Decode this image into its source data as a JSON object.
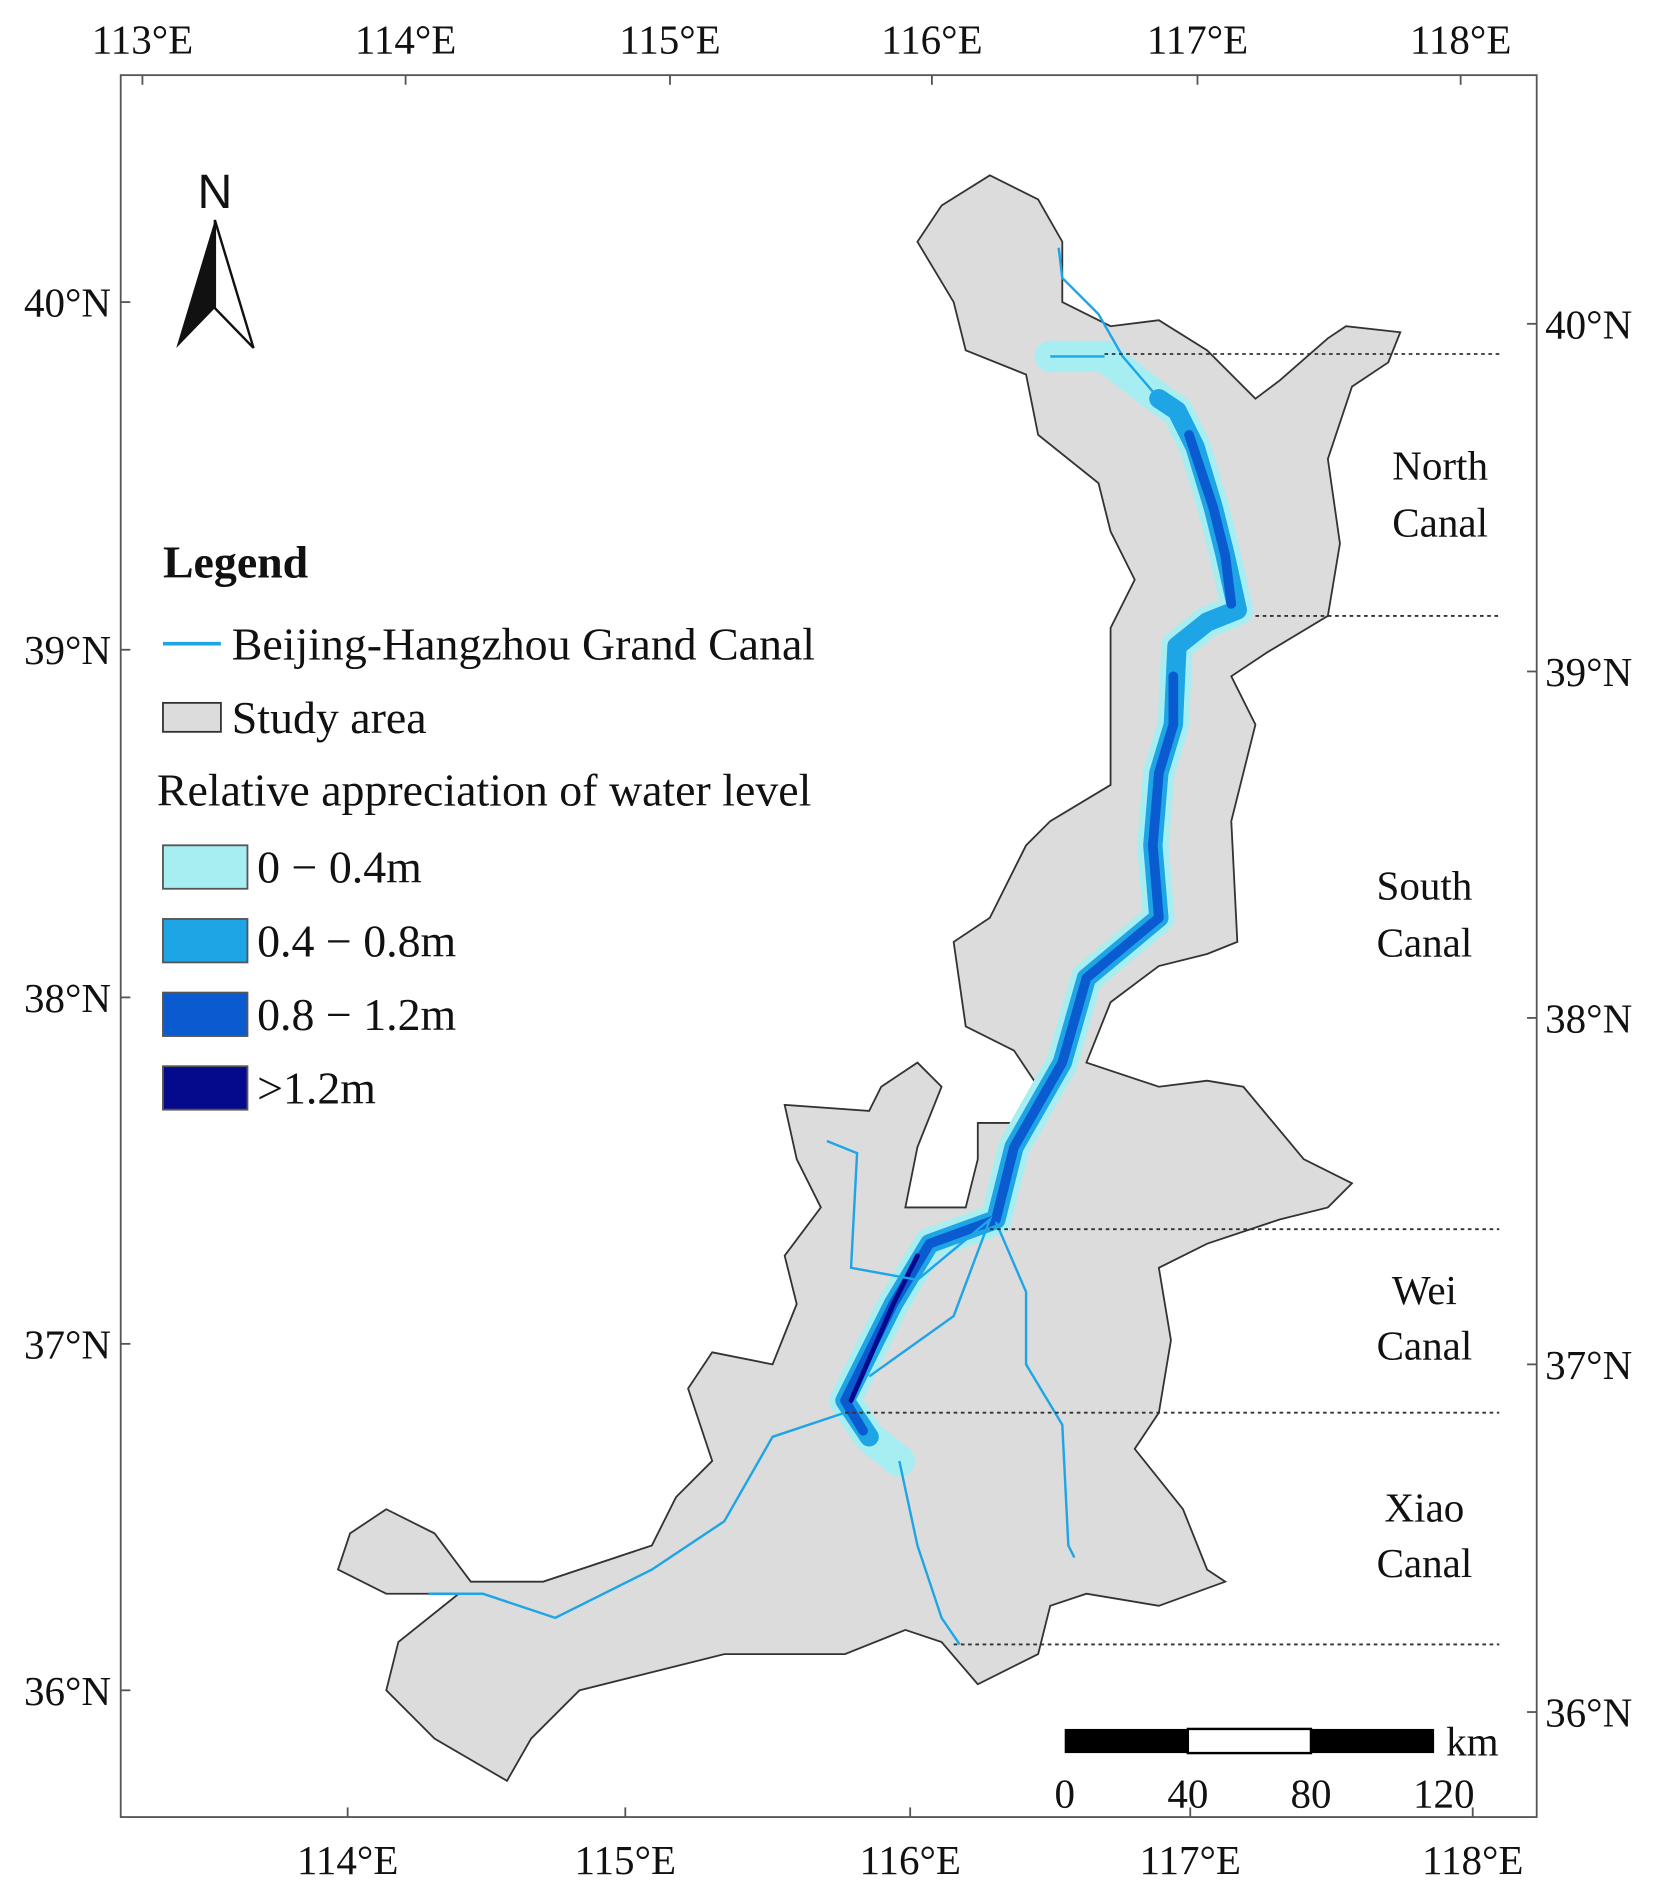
{
  "top_axis": {
    "labels": [
      "113°E",
      "114°E",
      "115°E",
      "116°E",
      "117°E",
      "118°E"
    ]
  },
  "bottom_axis": {
    "labels": [
      "114°E",
      "115°E",
      "116°E",
      "117°E",
      "118°E"
    ]
  },
  "left_axis": {
    "labels": [
      "40°N",
      "39°N",
      "38°N",
      "37°N",
      "36°N"
    ]
  },
  "right_axis": {
    "labels": [
      "40°N",
      "39°N",
      "38°N",
      "37°N",
      "36°N"
    ]
  },
  "north_arrow": {
    "label": "N"
  },
  "legend": {
    "title": "Legend",
    "canal": "Beijing-Hangzhou Grand Canal",
    "study_area": "Study area",
    "subtitle": "Relative appreciation of water level",
    "classes": [
      {
        "label": "0 − 0.4m",
        "color": "#a6eef2"
      },
      {
        "label": "0.4 − 0.8m",
        "color": "#1ea5e6"
      },
      {
        "label": "0.8 − 1.2m",
        "color": "#0b5bd0"
      },
      {
        "label": ">1.2m",
        "color": "#050a8c"
      }
    ]
  },
  "sections": [
    [
      "North",
      "Canal"
    ],
    [
      "South",
      "Canal"
    ],
    [
      "Wei",
      "Canal"
    ],
    [
      "Xiao",
      "Canal"
    ]
  ],
  "scale_bar": {
    "unit": "km",
    "labels": [
      "0",
      "40",
      "80",
      "120"
    ]
  }
}
